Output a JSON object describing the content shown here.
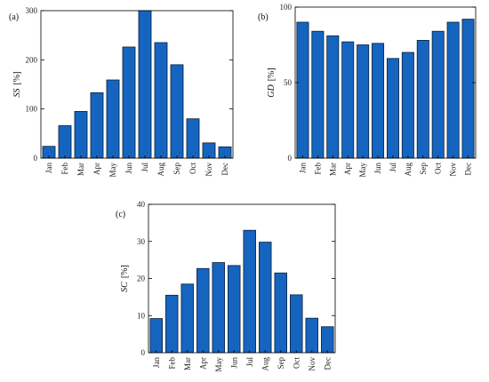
{
  "chart_data": [
    {
      "type": "bar",
      "panel_label": "(a)",
      "ylabel_var": "SS",
      "ylabel_unit": "[%]",
      "categories": [
        "Jan",
        "Feb",
        "Mar",
        "Apr",
        "May",
        "Jun",
        "Jul",
        "Aug",
        "Sep",
        "Oct",
        "Nov",
        "Dec"
      ],
      "values": [
        24,
        66,
        95,
        133,
        159,
        226,
        302,
        235,
        190,
        80,
        31,
        23
      ],
      "ylim": [
        0,
        300
      ],
      "yticks": [
        0,
        100,
        200,
        300
      ],
      "grid": false,
      "bar_color": "#1565C0"
    },
    {
      "type": "bar",
      "panel_label": "(b)",
      "ylabel_var": "GD",
      "ylabel_unit": "[%]",
      "categories": [
        "Jan",
        "Feb",
        "Mar",
        "Apr",
        "May",
        "Jun",
        "Jul",
        "Aug",
        "Sep",
        "Oct",
        "Nov",
        "Dec"
      ],
      "values": [
        90,
        84,
        81,
        77,
        75,
        76,
        66,
        70,
        78,
        84,
        90,
        92
      ],
      "ylim": [
        0,
        100
      ],
      "yticks": [
        0,
        50,
        100
      ],
      "grid": false,
      "bar_color": "#1565C0"
    },
    {
      "type": "bar",
      "panel_label": "(c)",
      "ylabel_var": "SC",
      "ylabel_unit": "[%]",
      "categories": [
        "Jan",
        "Feb",
        "Mar",
        "Apr",
        "May",
        "Jun",
        "Jul",
        "Aug",
        "Sep",
        "Oct",
        "Nov",
        "Dec"
      ],
      "values": [
        9.2,
        15.5,
        18.5,
        22.7,
        24.3,
        23.5,
        33,
        29.8,
        21.5,
        15.6,
        9.3,
        7
      ],
      "ylim": [
        0,
        40
      ],
      "yticks": [
        0,
        10,
        20,
        30,
        40
      ],
      "grid": false,
      "bar_color": "#1565C0"
    }
  ]
}
